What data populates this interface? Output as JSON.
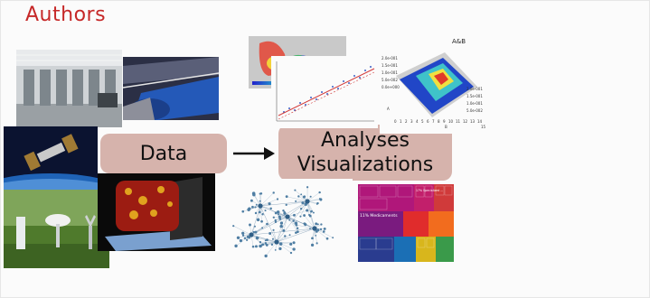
{
  "header": {
    "title": "Authors"
  },
  "diagram": {
    "source_label": "Data",
    "target_label_line1": "Analyses",
    "target_label_line2": "Visualizations"
  },
  "plot_3d": {
    "title": "A&B",
    "ticks": [
      "2.0e-001",
      "1.5e-001",
      "1.0e-001",
      "5.0e-002",
      "0.0e+000",
      "2.0e-001",
      "1.5e-001",
      "1.0e-001",
      "5.0e-002"
    ],
    "axis_a": "A",
    "axis_b": "B",
    "axis_numbers": [
      "0",
      "1",
      "2",
      "3",
      "4",
      "5",
      "6",
      "7",
      "8",
      "9",
      "10",
      "11",
      "12",
      "13",
      "14",
      "15"
    ]
  },
  "treemap": {
    "labels": [
      "11% Medicaments",
      "17% Specialized ..."
    ]
  },
  "colors": {
    "title": "#c62828",
    "pill": "#d6b3ac",
    "arrow": "#111111"
  }
}
